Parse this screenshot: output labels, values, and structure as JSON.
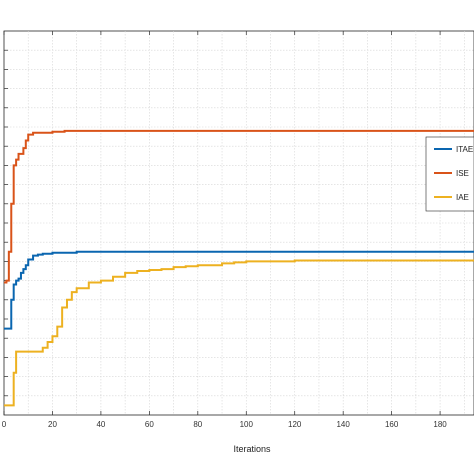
{
  "chart_data": {
    "type": "line",
    "title": "",
    "xlabel": "Iterations",
    "ylabel": "",
    "xlim": [
      0,
      194
    ],
    "ylim": [
      0,
      20
    ],
    "xticks": [
      0,
      20,
      40,
      60,
      80,
      100,
      120,
      140,
      160,
      180
    ],
    "grid": true,
    "legend_position": "right",
    "series": [
      {
        "name": "ITAE",
        "color": "#0a66b0",
        "x": [
          0,
          1,
          2,
          3,
          4,
          5,
          6,
          7,
          8,
          9,
          10,
          12,
          14,
          16,
          18,
          20,
          25,
          30,
          194
        ],
        "y": [
          4.5,
          4.5,
          4.5,
          6.0,
          6.8,
          7.0,
          7.1,
          7.4,
          7.6,
          7.8,
          8.1,
          8.3,
          8.35,
          8.4,
          8.4,
          8.45,
          8.45,
          8.5,
          8.5
        ]
      },
      {
        "name": "ISE",
        "color": "#d95319",
        "x": [
          0,
          1,
          2,
          3,
          4,
          5,
          6,
          7,
          8,
          9,
          10,
          12,
          15,
          20,
          25,
          30,
          194
        ],
        "y": [
          6.9,
          7.0,
          8.5,
          11.0,
          13.0,
          13.3,
          13.6,
          13.6,
          13.9,
          14.3,
          14.6,
          14.7,
          14.7,
          14.75,
          14.8,
          14.8,
          14.8
        ]
      },
      {
        "name": "IAE",
        "color": "#edb120",
        "x": [
          0,
          1,
          2,
          3,
          4,
          5,
          8,
          10,
          12,
          14,
          16,
          18,
          20,
          22,
          24,
          26,
          28,
          30,
          35,
          40,
          45,
          50,
          55,
          60,
          65,
          70,
          75,
          80,
          85,
          90,
          95,
          100,
          110,
          120,
          194
        ],
        "y": [
          0.5,
          0.5,
          0.5,
          0.5,
          2.2,
          3.3,
          3.3,
          3.3,
          3.3,
          3.3,
          3.5,
          3.8,
          4.1,
          4.6,
          5.6,
          6.0,
          6.4,
          6.6,
          6.9,
          7.0,
          7.2,
          7.4,
          7.5,
          7.55,
          7.6,
          7.7,
          7.75,
          7.8,
          7.8,
          7.9,
          7.95,
          8.0,
          8.0,
          8.05,
          8.05
        ]
      }
    ]
  }
}
